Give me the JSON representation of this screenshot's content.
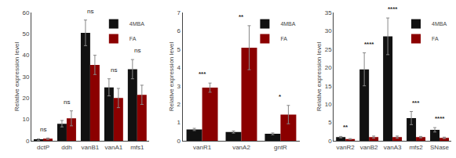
{
  "chart_data": [
    {
      "type": "bar",
      "categories": [
        "dctP",
        "ddh",
        "vanB1",
        "vanA1",
        "mfs1"
      ],
      "series": [
        {
          "name": "4MBA",
          "color": "#111111",
          "values": [
            0.5,
            8.0,
            50.5,
            25.0,
            33.5
          ],
          "errors": [
            0.4,
            1.5,
            6.0,
            4.0,
            4.5
          ]
        },
        {
          "name": "FA",
          "color": "#8B0000",
          "values": [
            1.0,
            10.5,
            35.5,
            20.0,
            21.5
          ],
          "errors": [
            0.3,
            3.5,
            4.5,
            4.5,
            4.5
          ]
        }
      ],
      "ylabel": "Relative expression level",
      "ylim": [
        0,
        60
      ],
      "yticks": [
        0,
        10,
        20,
        30,
        40,
        50,
        60
      ],
      "annotations": [
        "ns",
        "ns",
        "ns",
        "ns",
        "ns"
      ],
      "legend": "upper right",
      "grid": false
    },
    {
      "type": "bar",
      "categories": [
        "vanR1",
        "vanA2",
        "gntR"
      ],
      "series": [
        {
          "name": "4MBA",
          "color": "#111111",
          "values": [
            0.62,
            0.48,
            0.38
          ],
          "errors": [
            0.06,
            0.06,
            0.05
          ]
        },
        {
          "name": "FA",
          "color": "#8B0000",
          "values": [
            2.9,
            5.08,
            1.43
          ],
          "errors": [
            0.25,
            1.2,
            0.5
          ]
        }
      ],
      "ylabel": "Relative expression level",
      "ylim": [
        0,
        7
      ],
      "yticks": [
        0,
        1,
        2,
        3,
        4,
        5,
        6,
        7
      ],
      "annotations": [
        "***",
        "**",
        "*"
      ],
      "legend": "upper right",
      "grid": false
    },
    {
      "type": "bar",
      "categories": [
        "vanR2",
        "vanB2",
        "vanA3",
        "mfs2",
        "SNase"
      ],
      "series": [
        {
          "name": "4MBA",
          "color": "#111111",
          "values": [
            1.0,
            19.5,
            28.5,
            6.2,
            3.0
          ],
          "errors": [
            0.2,
            4.5,
            5.0,
            1.8,
            0.6
          ]
        },
        {
          "name": "FA",
          "color": "#8B0000",
          "values": [
            0.5,
            1.0,
            1.0,
            1.0,
            0.8
          ],
          "errors": [
            0.1,
            0.3,
            0.3,
            0.2,
            0.2
          ]
        }
      ],
      "ylabel": "Relative expression level",
      "ylim": [
        0,
        35
      ],
      "yticks": [
        0,
        5,
        10,
        15,
        20,
        25,
        30,
        35
      ],
      "annotations": [
        "**",
        "****",
        "****",
        "***",
        "****"
      ],
      "legend": "upper right",
      "grid": false
    }
  ]
}
